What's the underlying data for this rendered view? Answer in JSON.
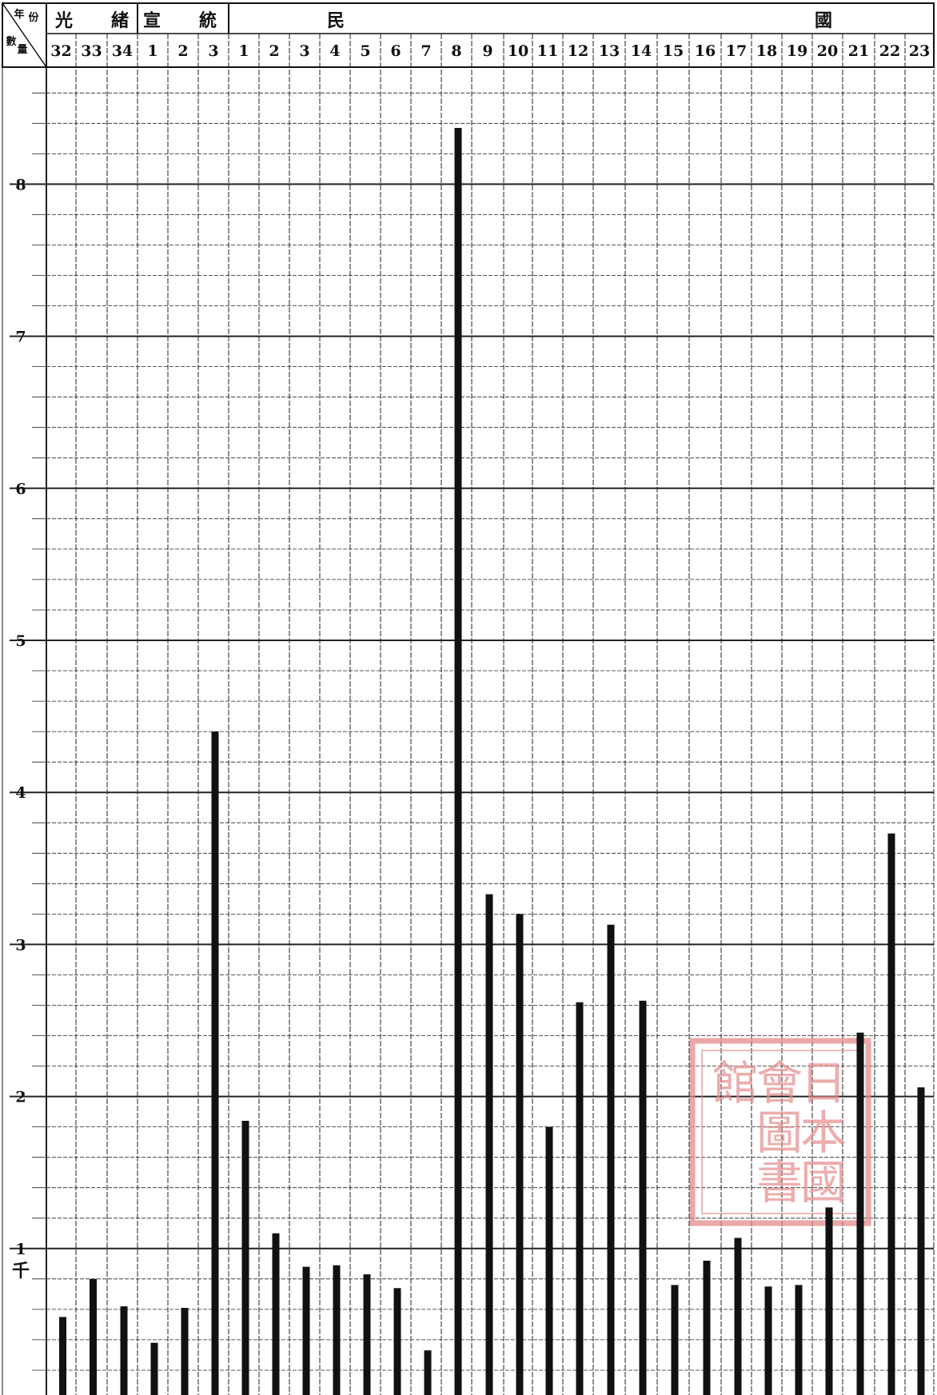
{
  "header": {
    "corner_top": "年份",
    "corner_bottom": "數量",
    "eras": [
      {
        "chars": [
          "光",
          "緒"
        ]
      },
      {
        "chars": [
          "宣",
          "統"
        ]
      },
      {
        "chars": [
          "民",
          "國"
        ]
      }
    ]
  },
  "y_axis": {
    "tick_labels": [
      "1",
      "2",
      "3",
      "4",
      "5",
      "6",
      "7",
      "8"
    ],
    "unit": "千"
  },
  "colors": {
    "ink": "#111111",
    "grid": "#222222",
    "paper": "#ffffff",
    "seal": "#e58a8a"
  },
  "seal": {
    "type": "red-seal-stamp",
    "text": "日本國會圖書館"
  },
  "chart_data": {
    "type": "bar",
    "categories": [
      "32",
      "33",
      "34",
      "1",
      "2",
      "3",
      "1",
      "2",
      "3",
      "4",
      "5",
      "6",
      "7",
      "8",
      "9",
      "10",
      "11",
      "12",
      "13",
      "14",
      "15",
      "16",
      "17",
      "18",
      "19",
      "20",
      "21",
      "22",
      "23"
    ],
    "values": [
      0.55,
      0.8,
      0.62,
      0.38,
      0.61,
      4.4,
      1.84,
      1.1,
      0.88,
      0.89,
      0.83,
      0.74,
      0.33,
      8.37,
      3.33,
      3.2,
      1.8,
      2.62,
      3.13,
      2.63,
      0.76,
      0.92,
      1.07,
      0.75,
      0.76,
      1.27,
      2.42,
      3.73,
      2.06
    ],
    "ylim": [
      0,
      9
    ],
    "yunit": "千",
    "xlabel": "",
    "ylabel": "",
    "grid": true,
    "legend": "none"
  }
}
